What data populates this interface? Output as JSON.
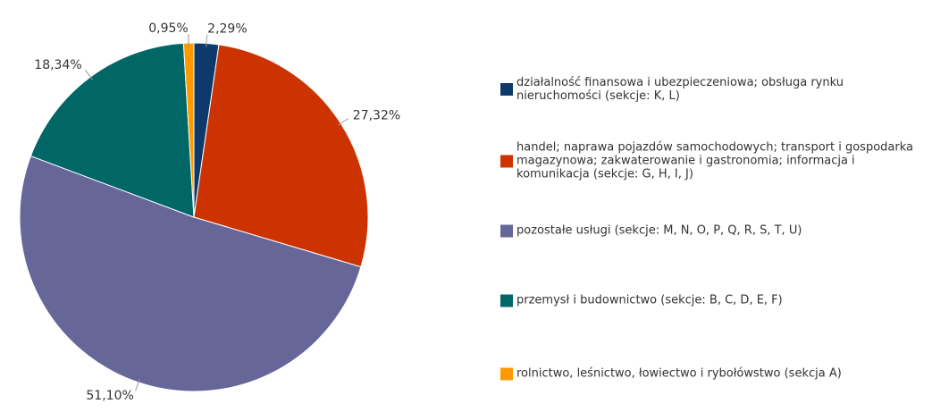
{
  "chart_data": {
    "type": "pie",
    "categories": [
      "działalność finansowa i ubezpieczeniowa; obsługa rynku nieruchomości (sekcje: K, L)",
      "handel; naprawa pojazdów samochodowych; transport i gospodarka magazynowa; zakwaterowanie i gastronomia; informacja i komunikacja (sekcje: G, H, I, J)",
      "pozostałe usługi (sekcje: M, N, O, P, Q, R, S, T, U)",
      "przemysł i budownictwo (sekcje: B, C, D, E, F)",
      "rolnictwo, leśnictwo, łowiectwo i rybołówstwo (sekcja A)"
    ],
    "values": [
      2.29,
      27.32,
      51.1,
      18.34,
      0.95
    ],
    "value_labels": [
      "2,29%",
      "27,32%",
      "51,10%",
      "18,34%",
      "0,95%"
    ],
    "colors": [
      "#0d3a6b",
      "#cc3300",
      "#666699",
      "#006666",
      "#ff9900"
    ],
    "legend": "right"
  }
}
